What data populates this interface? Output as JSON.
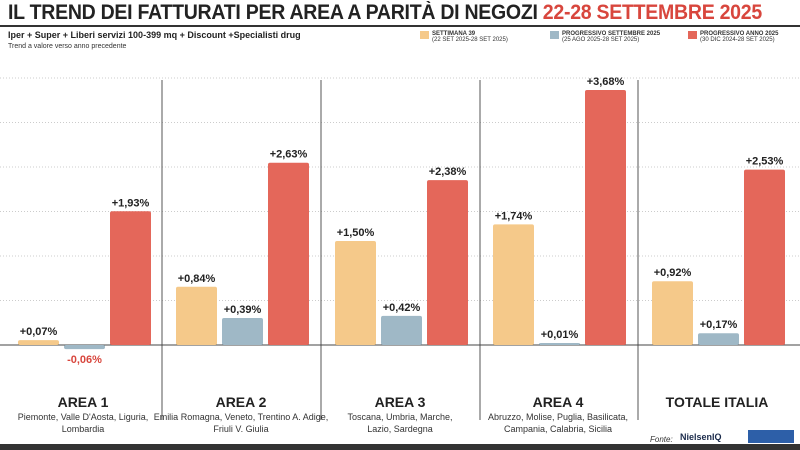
{
  "header": {
    "title": "IL TREND DEI FATTURATI PER AREA A PARITÀ DI NEGOZI",
    "title_highlight": "22-28 SETTEMBRE 2025",
    "subtitle": "Iper + Super + Liberi servizi 100-399 mq + Discount +Specialisti drug",
    "note": "Trend a valore verso anno precedente"
  },
  "legend": [
    {
      "label": "SETTIMANA 39",
      "period": "(22 SET 2025-28 SET 2025)",
      "color": "#f5c98a"
    },
    {
      "label": "PROGRESSIVO SETTEMBRE 2025",
      "period": "(25 AGO 2025-28 SET 2025)",
      "color": "#9fb8c6"
    },
    {
      "label": "PROGRESSIVO ANNO 2025",
      "period": "(30 DIC 2024-28 SET 2025)",
      "color": "#e4675a"
    }
  ],
  "footer": {
    "fonte": "Fonte:",
    "logo": "NielsenIQ"
  },
  "chart_data": {
    "type": "bar",
    "categories": [
      "AREA 1",
      "AREA 2",
      "AREA 3",
      "AREA 4",
      "TOTALE ITALIA"
    ],
    "category_details": [
      "Piemonte, Valle D'Aosta, Liguria, Lombardia",
      "Emilia Romagna, Veneto, Trentino A. Adige, Friuli V. Giulia",
      "Toscana, Umbria, Marche, Lazio, Sardegna",
      "Abruzzo, Molise, Puglia, Basilicata, Campania, Calabria, Sicilia",
      ""
    ],
    "series": [
      {
        "name": "SETTIMANA 39",
        "color": "#f5c98a",
        "values": [
          0.07,
          0.84,
          1.5,
          1.74,
          0.92
        ],
        "labels": [
          "+0,07%",
          "+0,84%",
          "+1,50%",
          "+1,74%",
          "+0,92%"
        ]
      },
      {
        "name": "PROGRESSIVO SETTEMBRE 2025",
        "color": "#9fb8c6",
        "values": [
          -0.06,
          0.39,
          0.42,
          0.01,
          0.17
        ],
        "labels": [
          "-0,06%",
          "+0,39%",
          "+0,42%",
          "+0,01%",
          "+0,17%"
        ]
      },
      {
        "name": "PROGRESSIVO ANNO 2025",
        "color": "#e4675a",
        "values": [
          1.93,
          2.63,
          2.38,
          3.68,
          2.53
        ],
        "labels": [
          "+1,93%",
          "+2,63%",
          "+2,38%",
          "+3,68%",
          "+2,53%"
        ]
      }
    ],
    "ylim": [
      -0.4,
      3.8
    ],
    "grid": true,
    "legend_position": "top-right",
    "negative_label_color": "#d8463d"
  }
}
